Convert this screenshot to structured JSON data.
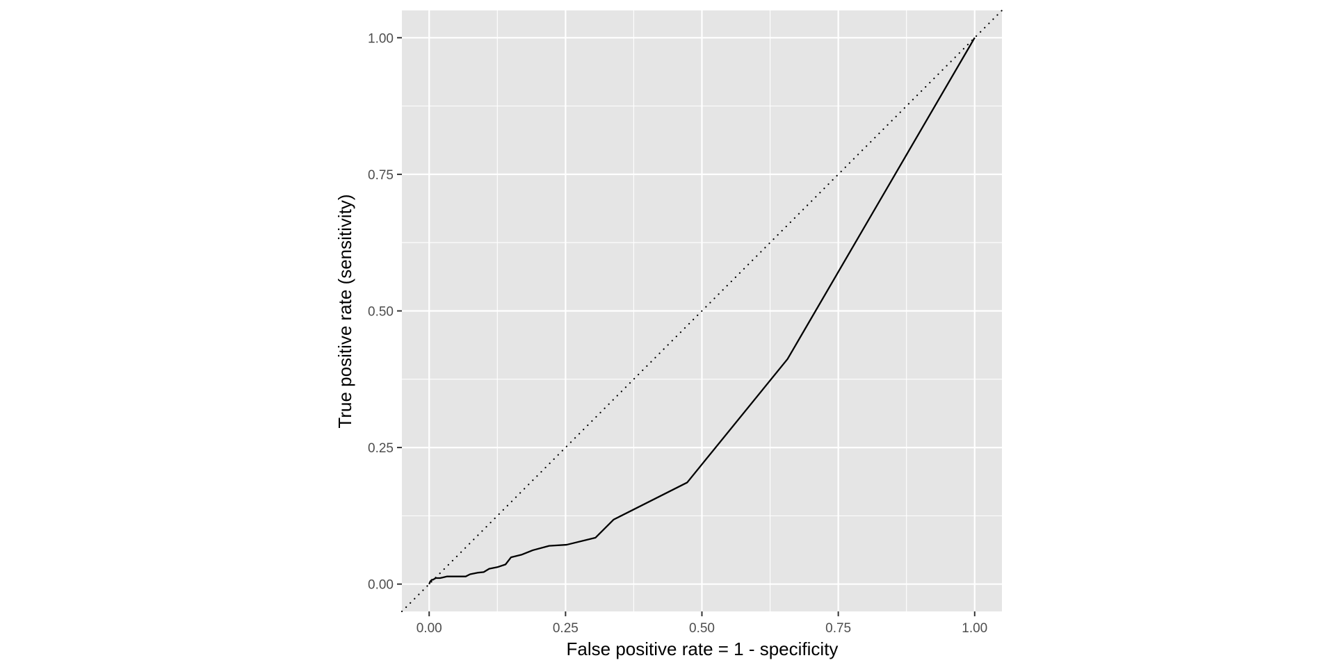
{
  "chart_data": {
    "type": "line",
    "title": "",
    "xlabel": "False positive rate = 1 - specificity",
    "ylabel": "True positive rate (sensitivity)",
    "xlim": [
      -0.05,
      1.05
    ],
    "ylim": [
      -0.05,
      1.05
    ],
    "grid": true,
    "legend": "none",
    "x_ticks": [
      "0.00",
      "0.25",
      "0.50",
      "0.75",
      "1.00"
    ],
    "y_ticks": [
      "0.00",
      "0.25",
      "0.50",
      "0.75",
      "1.00"
    ],
    "series": [
      {
        "x": [
          0.0,
          0.002,
          0.005,
          0.007,
          0.012,
          0.02,
          0.033,
          0.05,
          0.067,
          0.075,
          0.09,
          0.1,
          0.11,
          0.125,
          0.14,
          0.15,
          0.17,
          0.19,
          0.22,
          0.252,
          0.305,
          0.338,
          0.473,
          0.657,
          1.0
        ],
        "y": [
          0.0,
          0.005,
          0.008,
          0.008,
          0.011,
          0.011,
          0.014,
          0.014,
          0.014,
          0.018,
          0.021,
          0.022,
          0.028,
          0.031,
          0.036,
          0.049,
          0.054,
          0.062,
          0.07,
          0.072,
          0.085,
          0.118,
          0.186,
          0.412,
          1.0
        ]
      }
    ],
    "reference_line": {
      "x": [
        -0.05,
        1.05
      ],
      "y": [
        -0.05,
        1.05
      ],
      "style": "dotted"
    },
    "colors": {
      "panel_background": "#e5e5e5",
      "grid": "#ffffff",
      "line": "#000000",
      "tick_label": "#4d4d4d",
      "tick_mark": "#333333"
    }
  }
}
